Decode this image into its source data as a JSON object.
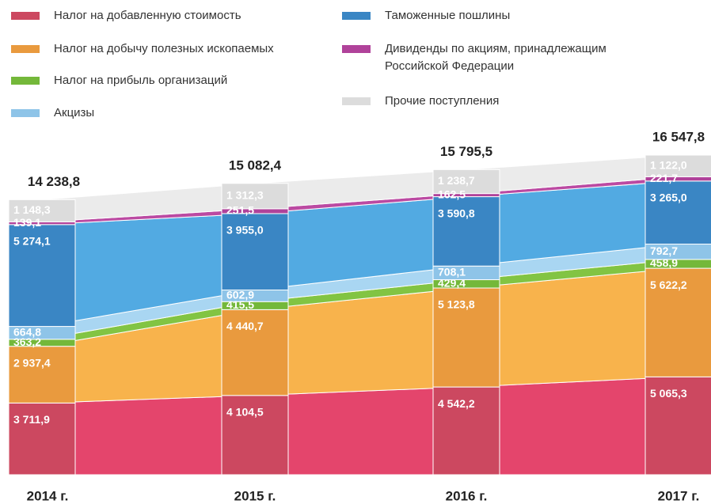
{
  "chart_data": {
    "type": "stacked_area_bar",
    "categories": [
      "2014 г.",
      "2015 г.",
      "2016 г.",
      "2017 г."
    ],
    "totals": [
      14238.8,
      15082.4,
      15795.5,
      16547.8
    ],
    "total_labels": [
      "14 238,8",
      "15 082,4",
      "15 795,5",
      "16 547,8"
    ],
    "series": [
      {
        "name": "Налог на добавленную стоимость",
        "color": "#cc4860",
        "area_color": "#e4456c",
        "values": [
          3711.9,
          4104.5,
          4542.2,
          5065.3
        ],
        "value_labels": [
          "3 711,9",
          "4 104,5",
          "4 542,2",
          "5 065,3"
        ]
      },
      {
        "name": "Налог на добычу полезных ископаемых",
        "color": "#e99a3e",
        "area_color": "#f8b34c",
        "values": [
          2937.4,
          4440.7,
          5123.8,
          5622.2
        ],
        "value_labels": [
          "2 937,4",
          "4 440,7",
          "5 123,8",
          "5 622,2"
        ]
      },
      {
        "name": "Налог на прибыль организаций",
        "color": "#74b83a",
        "area_color": "#82c443",
        "values": [
          363.2,
          415.5,
          429.4,
          458.9
        ],
        "value_labels": [
          "363,2",
          "415,5",
          "429,4",
          "458,9"
        ]
      },
      {
        "name": "Акцизы",
        "color": "#8ec4e8",
        "area_color": "#a9d6f2",
        "values": [
          664.8,
          602.9,
          708.1,
          792.7
        ],
        "value_labels": [
          "664,8",
          "602,9",
          "708,1",
          "792,7"
        ]
      },
      {
        "name": "Таможенные пошлины",
        "color": "#3a86c4",
        "area_color": "#52aae2",
        "values": [
          5274.1,
          3955.0,
          3590.8,
          3265.0
        ],
        "value_labels": [
          "5 274,1",
          "3 955,0",
          "3 590,8",
          "3 265,0"
        ]
      },
      {
        "name": "Дивиденды по акциям, принадлежащим Российской Федерации",
        "color": "#b0429a",
        "area_color": "#bb4aa2",
        "values": [
          139.1,
          251.5,
          162.5,
          221.7
        ],
        "value_labels": [
          "139,1",
          "251,5",
          "162,5",
          "221,7"
        ]
      },
      {
        "name": "Прочие поступления",
        "color": "#dcdcdc",
        "area_color": "#ebebeb",
        "values": [
          1148.3,
          1312.3,
          1238.7,
          1122.0
        ],
        "value_labels": [
          "1 148,3",
          "1 312,3",
          "1 238,7",
          "1 122,0"
        ]
      }
    ]
  }
}
